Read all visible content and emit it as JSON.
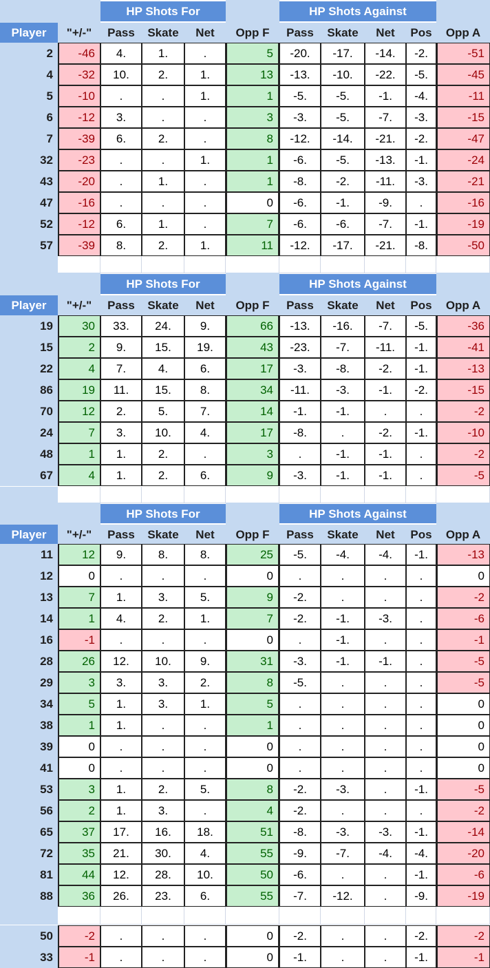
{
  "headers": {
    "group_for": "HP Shots For",
    "group_against": "HP Shots Against",
    "columns": [
      "Player",
      "\"+/-\"",
      "Pass",
      "Skate",
      "Net",
      "Opp F",
      "Pass",
      "Skate",
      "Net",
      "Pos",
      "Opp A"
    ]
  },
  "sections": [
    {
      "rows": [
        {
          "player": "2",
          "pm": -46,
          "fp": "4.",
          "fs": "1.",
          "fn": ".",
          "oppf": 5,
          "ap": "-20.",
          "as": "-17.",
          "an": "-14.",
          "apos": "-2.",
          "oppa": -51
        },
        {
          "player": "4",
          "pm": -32,
          "fp": "10.",
          "fs": "2.",
          "fn": "1.",
          "oppf": 13,
          "ap": "-13.",
          "as": "-10.",
          "an": "-22.",
          "apos": "-5.",
          "oppa": -45
        },
        {
          "player": "5",
          "pm": -10,
          "fp": ".",
          "fs": ".",
          "fn": "1.",
          "oppf": 1,
          "ap": "-5.",
          "as": "-5.",
          "an": "-1.",
          "apos": "-4.",
          "oppa": -11
        },
        {
          "player": "6",
          "pm": -12,
          "fp": "3.",
          "fs": ".",
          "fn": ".",
          "oppf": 3,
          "ap": "-3.",
          "as": "-5.",
          "an": "-7.",
          "apos": "-3.",
          "oppa": -15
        },
        {
          "player": "7",
          "pm": -39,
          "fp": "6.",
          "fs": "2.",
          "fn": ".",
          "oppf": 8,
          "ap": "-12.",
          "as": "-14.",
          "an": "-21.",
          "apos": "-2.",
          "oppa": -47
        },
        {
          "player": "32",
          "pm": -23,
          "fp": ".",
          "fs": ".",
          "fn": "1.",
          "oppf": 1,
          "ap": "-6.",
          "as": "-5.",
          "an": "-13.",
          "apos": "-1.",
          "oppa": -24
        },
        {
          "player": "43",
          "pm": -20,
          "fp": ".",
          "fs": "1.",
          "fn": ".",
          "oppf": 1,
          "ap": "-8.",
          "as": "-2.",
          "an": "-11.",
          "apos": "-3.",
          "oppa": -21
        },
        {
          "player": "47",
          "pm": -16,
          "fp": ".",
          "fs": ".",
          "fn": ".",
          "oppf": 0,
          "ap": "-6.",
          "as": "-1.",
          "an": "-9.",
          "apos": ".",
          "oppa": -16
        },
        {
          "player": "52",
          "pm": -12,
          "fp": "6.",
          "fs": "1.",
          "fn": ".",
          "oppf": 7,
          "ap": "-6.",
          "as": "-6.",
          "an": "-7.",
          "apos": "-1.",
          "oppa": -19
        },
        {
          "player": "57",
          "pm": -39,
          "fp": "8.",
          "fs": "2.",
          "fn": "1.",
          "oppf": 11,
          "ap": "-12.",
          "as": "-17.",
          "an": "-21.",
          "apos": "-8.",
          "oppa": -50
        }
      ]
    },
    {
      "rows": [
        {
          "player": "19",
          "pm": 30,
          "fp": "33.",
          "fs": "24.",
          "fn": "9.",
          "oppf": 66,
          "ap": "-13.",
          "as": "-16.",
          "an": "-7.",
          "apos": "-5.",
          "oppa": -36
        },
        {
          "player": "15",
          "pm": 2,
          "fp": "9.",
          "fs": "15.",
          "fn": "19.",
          "oppf": 43,
          "ap": "-23.",
          "as": "-7.",
          "an": "-11.",
          "apos": "-1.",
          "oppa": -41
        },
        {
          "player": "22",
          "pm": 4,
          "fp": "7.",
          "fs": "4.",
          "fn": "6.",
          "oppf": 17,
          "ap": "-3.",
          "as": "-8.",
          "an": "-2.",
          "apos": "-1.",
          "oppa": -13
        },
        {
          "player": "86",
          "pm": 19,
          "fp": "11.",
          "fs": "15.",
          "fn": "8.",
          "oppf": 34,
          "ap": "-11.",
          "as": "-3.",
          "an": "-1.",
          "apos": "-2.",
          "oppa": -15
        },
        {
          "player": "70",
          "pm": 12,
          "fp": "2.",
          "fs": "5.",
          "fn": "7.",
          "oppf": 14,
          "ap": "-1.",
          "as": "-1.",
          "an": ".",
          "apos": ".",
          "oppa": -2
        },
        {
          "player": "24",
          "pm": 7,
          "fp": "3.",
          "fs": "10.",
          "fn": "4.",
          "oppf": 17,
          "ap": "-8.",
          "as": ".",
          "an": "-2.",
          "apos": "-1.",
          "oppa": -10
        },
        {
          "player": "48",
          "pm": 1,
          "fp": "1.",
          "fs": "2.",
          "fn": ".",
          "oppf": 3,
          "ap": ".",
          "as": "-1.",
          "an": "-1.",
          "apos": ".",
          "oppa": -2
        },
        {
          "player": "67",
          "pm": 4,
          "fp": "1.",
          "fs": "2.",
          "fn": "6.",
          "oppf": 9,
          "ap": "-3.",
          "as": "-1.",
          "an": "-1.",
          "apos": ".",
          "oppa": -5
        }
      ]
    },
    {
      "rows": [
        {
          "player": "11",
          "pm": 12,
          "fp": "9.",
          "fs": "8.",
          "fn": "8.",
          "oppf": 25,
          "ap": "-5.",
          "as": "-4.",
          "an": "-4.",
          "apos": "-1.",
          "oppa": -13
        },
        {
          "player": "12",
          "pm": 0,
          "fp": ".",
          "fs": ".",
          "fn": ".",
          "oppf": 0,
          "ap": ".",
          "as": ".",
          "an": ".",
          "apos": ".",
          "oppa": 0
        },
        {
          "player": "13",
          "pm": 7,
          "fp": "1.",
          "fs": "3.",
          "fn": "5.",
          "oppf": 9,
          "ap": "-2.",
          "as": ".",
          "an": ".",
          "apos": ".",
          "oppa": -2
        },
        {
          "player": "14",
          "pm": 1,
          "fp": "4.",
          "fs": "2.",
          "fn": "1.",
          "oppf": 7,
          "ap": "-2.",
          "as": "-1.",
          "an": "-3.",
          "apos": ".",
          "oppa": -6
        },
        {
          "player": "16",
          "pm": -1,
          "fp": ".",
          "fs": ".",
          "fn": ".",
          "oppf": 0,
          "ap": ".",
          "as": "-1.",
          "an": ".",
          "apos": ".",
          "oppa": -1
        },
        {
          "player": "28",
          "pm": 26,
          "fp": "12.",
          "fs": "10.",
          "fn": "9.",
          "oppf": 31,
          "ap": "-3.",
          "as": "-1.",
          "an": "-1.",
          "apos": ".",
          "oppa": -5
        },
        {
          "player": "29",
          "pm": 3,
          "fp": "3.",
          "fs": "3.",
          "fn": "2.",
          "oppf": 8,
          "ap": "-5.",
          "as": ".",
          "an": ".",
          "apos": ".",
          "oppa": -5
        },
        {
          "player": "34",
          "pm": 5,
          "fp": "1.",
          "fs": "3.",
          "fn": "1.",
          "oppf": 5,
          "ap": ".",
          "as": ".",
          "an": ".",
          "apos": ".",
          "oppa": 0
        },
        {
          "player": "38",
          "pm": 1,
          "fp": "1.",
          "fs": ".",
          "fn": ".",
          "oppf": 1,
          "ap": ".",
          "as": ".",
          "an": ".",
          "apos": ".",
          "oppa": 0
        },
        {
          "player": "39",
          "pm": 0,
          "fp": ".",
          "fs": ".",
          "fn": ".",
          "oppf": 0,
          "ap": ".",
          "as": ".",
          "an": ".",
          "apos": ".",
          "oppa": 0
        },
        {
          "player": "41",
          "pm": 0,
          "fp": ".",
          "fs": ".",
          "fn": ".",
          "oppf": 0,
          "ap": ".",
          "as": ".",
          "an": ".",
          "apos": ".",
          "oppa": 0
        },
        {
          "player": "53",
          "pm": 3,
          "fp": "1.",
          "fs": "2.",
          "fn": "5.",
          "oppf": 8,
          "ap": "-2.",
          "as": "-3.",
          "an": ".",
          "apos": "-1.",
          "oppa": -5
        },
        {
          "player": "56",
          "pm": 2,
          "fp": "1.",
          "fs": "3.",
          "fn": ".",
          "oppf": 4,
          "ap": "-2.",
          "as": ".",
          "an": ".",
          "apos": ".",
          "oppa": -2
        },
        {
          "player": "65",
          "pm": 37,
          "fp": "17.",
          "fs": "16.",
          "fn": "18.",
          "oppf": 51,
          "ap": "-8.",
          "as": "-3.",
          "an": "-3.",
          "apos": "-1.",
          "oppa": -14
        },
        {
          "player": "72",
          "pm": 35,
          "fp": "21.",
          "fs": "30.",
          "fn": "4.",
          "oppf": 55,
          "ap": "-9.",
          "as": "-7.",
          "an": "-4.",
          "apos": "-4.",
          "oppa": -20
        },
        {
          "player": "81",
          "pm": 44,
          "fp": "12.",
          "fs": "28.",
          "fn": "10.",
          "oppf": 50,
          "ap": "-6.",
          "as": ".",
          "an": ".",
          "apos": "-1.",
          "oppa": -6
        },
        {
          "player": "88",
          "pm": 36,
          "fp": "26.",
          "fs": "23.",
          "fn": "6.",
          "oppf": 55,
          "ap": "-7.",
          "as": "-12.",
          "an": ".",
          "apos": "-9.",
          "oppa": -19
        }
      ]
    },
    {
      "rows": [
        {
          "player": "50",
          "pm": -2,
          "fp": ".",
          "fs": ".",
          "fn": ".",
          "oppf": 0,
          "ap": "-2.",
          "as": ".",
          "an": ".",
          "apos": "-2.",
          "oppa": -2
        },
        {
          "player": "33",
          "pm": -1,
          "fp": ".",
          "fs": ".",
          "fn": ".",
          "oppf": 0,
          "ap": "-1.",
          "as": ".",
          "an": ".",
          "apos": "-1.",
          "oppa": -1
        }
      ]
    }
  ],
  "colors": {
    "header_blue": "#5b8fd9",
    "band_blue": "#c5d9f1",
    "negative_fill": "#ffc7ce",
    "negative_text": "#9c0006",
    "positive_fill": "#c6efce",
    "positive_text": "#006100"
  }
}
